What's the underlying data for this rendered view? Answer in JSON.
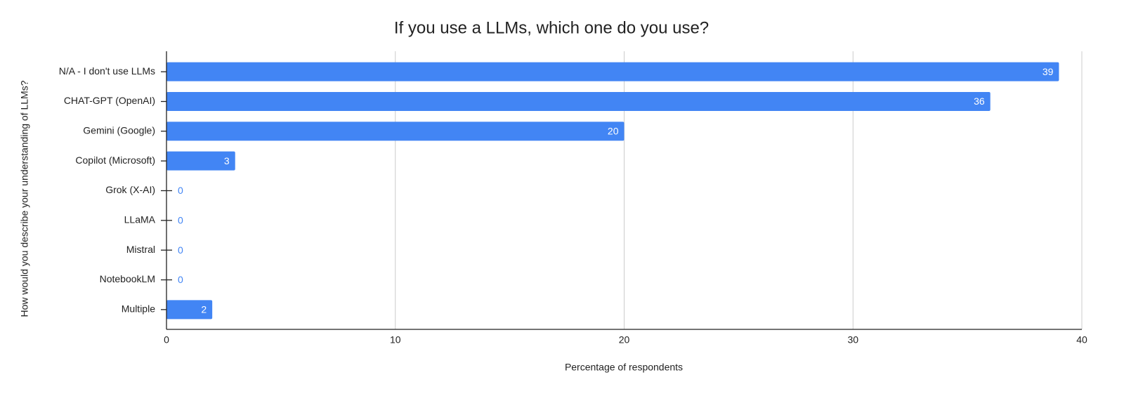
{
  "chart_data": {
    "type": "hbar",
    "title": "If you use a LLMs, which one do you use?",
    "x_label": "Percentage of respondents",
    "y_label": "How would you describe your understanding of LLMs?",
    "categories": [
      "N/A - I don't use LLMs",
      "CHAT-GPT (OpenAI)",
      "Gemini (Google)",
      "Copilot (Microsoft)",
      "Grok (X-AI)",
      "LLaMA",
      "Mistral",
      "NotebookLM",
      "Multiple"
    ],
    "values": [
      39,
      36,
      20,
      3,
      0,
      0,
      0,
      0,
      2
    ],
    "color": "#4285f4",
    "xlim": [
      0,
      40
    ],
    "xticks": [
      0,
      10,
      20,
      30,
      40
    ],
    "grid": true
  }
}
